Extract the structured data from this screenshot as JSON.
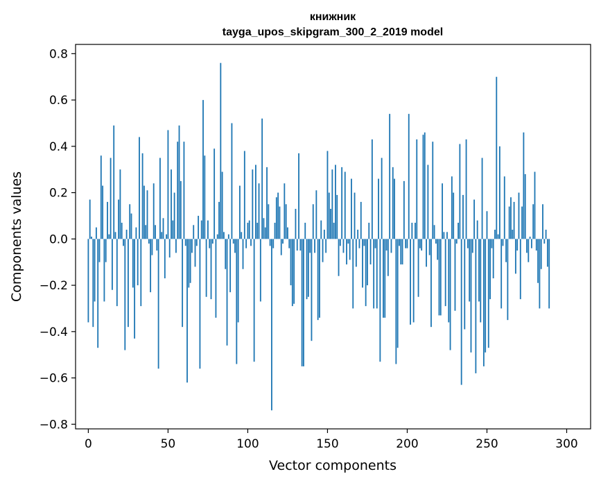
{
  "chart_data": {
    "type": "bar",
    "title_line1": "книжник",
    "title_line2": "tayga_upos_skipgram_300_2_2019 model",
    "xlabel": "Vector components",
    "ylabel": "Components values",
    "xlim": [
      -8,
      315
    ],
    "ylim": [
      -0.82,
      0.84
    ],
    "x_ticks": [
      0,
      50,
      100,
      150,
      200,
      250,
      300
    ],
    "x_tick_labels": [
      "0",
      "50",
      "100",
      "150",
      "200",
      "250",
      "300"
    ],
    "y_ticks": [
      -0.8,
      -0.6,
      -0.4,
      -0.2,
      0.0,
      0.2,
      0.4,
      0.6,
      0.8
    ],
    "y_tick_labels": [
      "−0.8",
      "−0.6",
      "−0.4",
      "−0.2",
      "0.0",
      "0.2",
      "0.4",
      "0.6",
      "0.8"
    ],
    "bar_color": "#1f77b4",
    "values": [
      -0.36,
      0.17,
      0.01,
      -0.38,
      -0.27,
      0.05,
      -0.47,
      -0.1,
      0.36,
      0.23,
      -0.27,
      -0.1,
      0.16,
      0.02,
      0.35,
      -0.22,
      0.49,
      0.03,
      -0.29,
      0.17,
      0.3,
      0.07,
      -0.03,
      -0.48,
      0.04,
      -0.38,
      0.15,
      0.11,
      -0.21,
      -0.43,
      0.05,
      -0.2,
      0.44,
      -0.29,
      0.37,
      0.23,
      0.06,
      0.21,
      -0.02,
      -0.23,
      -0.07,
      0.24,
      0.06,
      -0.05,
      -0.56,
      0.35,
      0.03,
      0.09,
      -0.17,
      0.02,
      0.47,
      -0.08,
      0.3,
      0.08,
      0.2,
      -0.06,
      0.42,
      0.49,
      0.25,
      -0.38,
      0.42,
      -0.03,
      -0.62,
      -0.21,
      -0.19,
      -0.06,
      0.06,
      -0.12,
      -0.03,
      0.1,
      -0.56,
      0.08,
      0.6,
      0.36,
      -0.25,
      0.08,
      -0.04,
      -0.26,
      -0.02,
      0.39,
      -0.34,
      0.02,
      0.16,
      0.76,
      0.29,
      0.03,
      -0.13,
      -0.46,
      0.02,
      -0.23,
      0.5,
      -0.02,
      -0.06,
      -0.54,
      -0.36,
      0.23,
      0.03,
      -0.13,
      0.38,
      -0.04,
      0.07,
      0.08,
      -0.03,
      0.3,
      -0.53,
      0.32,
      0.07,
      0.24,
      -0.27,
      0.52,
      0.09,
      0.05,
      0.31,
      0.15,
      -0.03,
      -0.74,
      -0.04,
      0.07,
      0.18,
      0.2,
      0.14,
      -0.07,
      -0.02,
      0.24,
      0.15,
      0.05,
      -0.04,
      -0.2,
      -0.29,
      -0.28,
      0.13,
      -0.05,
      0.37,
      -0.05,
      -0.55,
      -0.55,
      0.07,
      -0.26,
      -0.25,
      -0.06,
      -0.44,
      0.15,
      -0.06,
      0.21,
      -0.35,
      -0.34,
      0.08,
      -0.1,
      0.04,
      -0.06,
      0.38,
      0.2,
      0.13,
      0.3,
      0.07,
      0.32,
      0.19,
      -0.16,
      -0.03,
      0.31,
      -0.06,
      0.29,
      -0.11,
      -0.02,
      -0.09,
      0.26,
      -0.3,
      0.2,
      -0.12,
      0.04,
      -0.04,
      0.16,
      -0.21,
      -0.03,
      -0.29,
      -0.2,
      0.07,
      -0.11,
      0.43,
      -0.3,
      -0.04,
      -0.3,
      0.26,
      -0.53,
      0.35,
      -0.34,
      -0.34,
      -0.05,
      -0.16,
      0.54,
      -0.06,
      0.31,
      0.26,
      -0.54,
      -0.47,
      -0.03,
      -0.11,
      -0.11,
      0.25,
      -0.04,
      -0.04,
      0.54,
      -0.37,
      0.07,
      -0.36,
      0.07,
      0.43,
      -0.25,
      -0.04,
      -0.05,
      0.45,
      0.46,
      -0.12,
      0.32,
      -0.07,
      -0.38,
      0.42,
      0.06,
      -0.02,
      -0.09,
      -0.33,
      -0.33,
      0.24,
      0.03,
      -0.29,
      0.03,
      -0.36,
      -0.48,
      0.27,
      0.2,
      -0.31,
      -0.02,
      0.07,
      0.41,
      -0.63,
      0.19,
      -0.39,
      0.43,
      -0.04,
      -0.27,
      -0.49,
      -0.06,
      0.17,
      -0.58,
      0.08,
      -0.27,
      -0.36,
      0.35,
      -0.55,
      -0.49,
      0.12,
      -0.47,
      -0.26,
      -0.04,
      -0.17,
      0.04,
      0.7,
      0.02,
      0.4,
      -0.3,
      -0.03,
      0.27,
      -0.1,
      -0.35,
      0.14,
      0.18,
      0.04,
      0.16,
      -0.15,
      -0.05,
      0.2,
      -0.26,
      0.14,
      0.46,
      0.28,
      -0.06,
      -0.1,
      0.01,
      -0.04,
      0.15,
      0.29,
      -0.05,
      -0.19,
      -0.3,
      -0.13,
      0.15,
      -0.02,
      0.04,
      -0.12,
      -0.3
    ]
  }
}
